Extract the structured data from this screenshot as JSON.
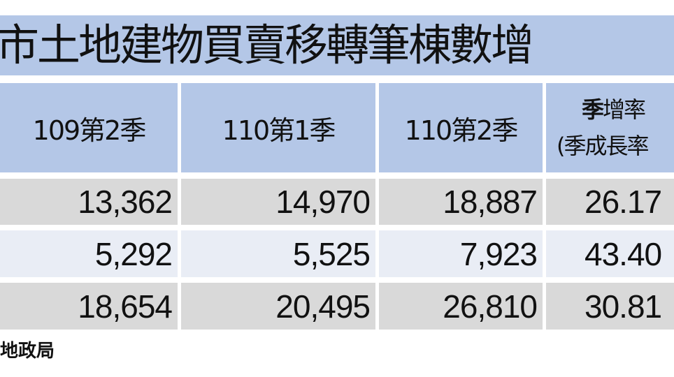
{
  "title": "市土地建物買賣移轉筆棟數增",
  "headers": [
    "109第2季",
    "110第1季",
    "110第2季"
  ],
  "rate_header": {
    "bold_part": "季",
    "rest": "增率",
    "line2": "(季成長率"
  },
  "rows": [
    [
      "13,362",
      "14,970",
      "18,887",
      "26.17"
    ],
    [
      "5,292",
      "5,525",
      "7,923",
      "43.40"
    ],
    [
      "18,654",
      "20,495",
      "26,810",
      "30.81"
    ]
  ],
  "source": "地政局",
  "colors": {
    "header_bg": "#b4c7e7",
    "row_gray": "#d9d9d9",
    "row_light": "#e9edf5"
  }
}
